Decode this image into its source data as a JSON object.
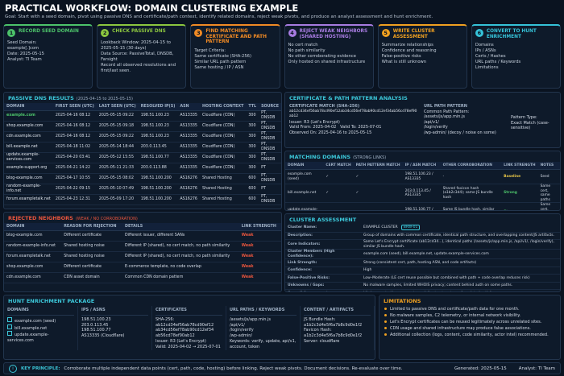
{
  "header": {
    "title": "PRACTICAL WORKFLOW: DOMAIN CLUSTERING EXAMPLE",
    "goal": "Goal: Start with a seed domain, pivot using passive DNS and certificate/path context, identify related domains, reject weak pivots, and produce an analyst assessment and hunt enrichment."
  },
  "steps": [
    {
      "number": "1",
      "title": "RECORD SEED DOMAIN",
      "color": "#4cc26a",
      "lines": [
        "Seed Domain:",
        "example[.]com",
        "Date: 2025-05-15",
        "Analyst: TI Team"
      ]
    },
    {
      "number": "2",
      "title": "CHECK PASSIVE DNS",
      "color": "#8cc63f",
      "lines": [
        "Lookback Window: 2025-04-15 to 2025-05-15 (30 days)",
        "Data Source: PassiveTotal, DNSDB, Farsight",
        "Record all observed resolutions and first/last seen."
      ]
    },
    {
      "number": "3",
      "title": "FIND MATCHING CERTIFICATE AND PATH PATTERN",
      "color": "#f08a24",
      "lines": [
        "Target Criteria:",
        "Same certificate (SHA-256)",
        "Similar URL path pattern",
        "Same hosting / IP / ASN"
      ]
    },
    {
      "number": "4",
      "title": "REJECT WEAK NEIGHBORS (SHARED HOSTING)",
      "color": "#a77be0",
      "lines": [
        "No cert match",
        "No path similarity",
        "No other corroborating evidence",
        "Only hosted on shared infrastructure"
      ]
    },
    {
      "number": "5",
      "title": "WRITE CLUSTER ASSESSMENT",
      "color": "#f0a020",
      "lines": [
        "Summarize relationships",
        "Confidence and reasoning",
        "False-positive risks",
        "What is still unknown"
      ]
    },
    {
      "number": "6",
      "title": "CONVERT TO HUNT ENRICHMENT",
      "color": "#35c2d8",
      "lines": [
        "Domains",
        "IPs / ASNs",
        "Certs / Hashes",
        "URL paths / Keywords",
        "Limitations"
      ]
    }
  ],
  "passive_dns": {
    "title": "PASSIVE DNS RESULTS",
    "subtitle": "(2025-04-15 to 2025-05-15)",
    "columns": [
      "DOMAIN",
      "FIRST SEEN (UTC)",
      "LAST SEEN (UTC)",
      "RESOLVED IP(S)",
      "ASN",
      "HOSTING CONTEXT",
      "TTL",
      "SOURCE"
    ],
    "rows": [
      [
        "example.com",
        "2025-04-16 08:12",
        "2025-05-15 09:22",
        "198.51.100.23",
        "AS13335",
        "Cloudflare (CDN)",
        "300",
        "PT, DNSDB"
      ],
      [
        "shop.example.com",
        "2025-04-16 08:12",
        "2025-05-15 09:18",
        "198.51.100.23",
        "AS13335",
        "Cloudflare (CDN)",
        "300",
        "PT, DNSDB"
      ],
      [
        "cdn.example.com",
        "2025-04-16 08:12",
        "2025-05-15 09:22",
        "198.51.100.23",
        "AS13335",
        "Cloudflare (CDN)",
        "300",
        "PT, DNSDB"
      ],
      [
        "bill.example.net",
        "2025-04-18 11:02",
        "2025-05-14 18:44",
        "203.0.113.45",
        "AS13335",
        "Cloudflare (CDN)",
        "300",
        "PT, DNSDB"
      ],
      [
        "update.example-services.com",
        "2025-04-20 03:41",
        "2025-05-12 15:55",
        "198.51.100.77",
        "AS13335",
        "Cloudflare (CDN)",
        "300",
        "PT, DNSDB"
      ],
      [
        "example-support.org",
        "2025-04-21 14:22",
        "2025-05-11 21:33",
        "203.0.113.88",
        "AS13335",
        "Cloudflare (CDN)",
        "300",
        "PT"
      ],
      [
        "blog-example.com",
        "2025-04-17 10:55",
        "2025-05-15 08:02",
        "198.51.100.200",
        "AS16276",
        "Shared Hosting",
        "600",
        "PT, DNSDB"
      ],
      [
        "random-example-info.net",
        "2025-04-22 09:15",
        "2025-05-10 07:49",
        "198.51.100.200",
        "AS16276",
        "Shared Hosting",
        "600",
        "PT"
      ],
      [
        "forum.exampletalk.net",
        "2025-04-23 12:31",
        "2025-05-09 17:20",
        "198.51.100.200",
        "AS16276",
        "Shared Hosting",
        "600",
        "PT, DNSDB"
      ]
    ]
  },
  "cert": {
    "title": "CERTIFICATE & PATH PATTERN ANALYSIS",
    "cert_label": "CERTIFICATE MATCH (SHA-256)",
    "hash": "ab12cd34ef56ab78cd90ef12ab34cd56ef78ab90cd12ef34ab56cd78ef90ab12",
    "issuer": "Issuer: R3 (Let's Encrypt)",
    "valid_from": "Valid From: 2025-04-02",
    "valid_to": "Valid To: 2025-07-01",
    "observed": "Observed On: 2025-04-16 to 2025-05-15",
    "path_label": "URL PATH PATTERN",
    "path_header": "Common Path Pattern:",
    "paths": [
      "/assets/js/app.min.js",
      "/api/v1/",
      "/login/verify",
      "/wp-admin/ (decoy / noise on some)"
    ],
    "pattern_type_label": "Pattern Type:",
    "pattern_type": "Exact Match (case-sensitive)"
  },
  "matching": {
    "title": "MATCHING DOMAINS",
    "subtitle": "(STRONG LINKS)",
    "columns": [
      "DOMAIN",
      "CERT MATCH",
      "PATH PATTERN MATCH",
      "IP / ASN MATCH",
      "OTHER CORROBORATION",
      "LINK STRENGTH",
      "NOTES"
    ],
    "rows": [
      [
        "example.com (seed)",
        "✓",
        "✓",
        "198.51.100.23 / AS13335",
        "-",
        "Baseline",
        "Seed"
      ],
      [
        "bill.example.net",
        "✓",
        "✓",
        "203.0.113.45 / AS13335",
        "Shared favicon hash (a1b2c3d4); same JS bundle hash",
        "Strong",
        "Same cert, same paths"
      ],
      [
        "update.example-services.com",
        "✓",
        "✓",
        "198.51.100.77 / AS13335",
        "Same JS bundle hash, similar config endpoint",
        "Strong",
        "Same cert, same paths"
      ]
    ],
    "strength_colors": [
      "#e8c547",
      "#4cc26a",
      "#4cc26a"
    ]
  },
  "rejected": {
    "title": "REJECTED NEIGHBORS",
    "subtitle": "(WEAK / NO CORROBORATION)",
    "columns": [
      "DOMAIN",
      "REASON FOR REJECTION",
      "DETAILS",
      "LINK STRENGTH"
    ],
    "rows": [
      [
        "blog-example.com",
        "Different certificate",
        "Different issuer, different SANs",
        "Weak"
      ],
      [
        "random-example-info.net",
        "Shared hosting noise",
        "Different IP (shared), no cert match, no path similarity",
        "Weak"
      ],
      [
        "forum.exampletalk.net",
        "Shared hosting noise",
        "Different IP (shared), no cert match, no path similarity",
        "Weak"
      ],
      [
        "shop.example.com",
        "Different certificate",
        "E-commerce template, no code overlap",
        "Weak"
      ],
      [
        "cdn.example.com",
        "CDN asset domain",
        "Common CDN domain pattern",
        "Weak"
      ]
    ],
    "strength_color": "#e8553d"
  },
  "assessment": {
    "title": "CLUSTER ASSESSMENT",
    "rows": [
      [
        "Cluster Name:",
        "EXAMPLE CLUSTER",
        "BRW-01"
      ],
      [
        "Description:",
        "Group of domains with common certificate, identical path structure, and overlapping content/JS artifacts."
      ],
      [
        "Core Indicators:",
        "Same Let's Encrypt certificate (ab12cd34...), identical paths (/assets/js/app.min.js, /api/v1/, /login/verify), similar JS bundle hash."
      ],
      [
        "Cluster Members (High Confidence):",
        "example.com (seed), bill.example.net, update.example-services.com"
      ],
      [
        "Link Strength:",
        "Strong (consistent cert, path, hosting ASN, and code artifacts)"
      ],
      [
        "Confidence:",
        "High"
      ],
      [
        "False-Positive Risks:",
        "Low–Moderate (LE cert reuse possible but combined with path + code overlap reduces risk)"
      ],
      [
        "Unknowns / Gaps:",
        "No malware samples, limited WHOIS privacy; content behind auth on some paths."
      ],
      [
        "Overall Assessment:",
        "Likely operated by same actor or infrastructure team for related activity."
      ]
    ]
  },
  "hunt": {
    "title": "HUNT ENRICHMENT PACKAGE",
    "columns": [
      {
        "header": "DOMAINS",
        "items": [
          "example.com (seed)",
          "bill.example.net",
          "update.example-services.com"
        ]
      },
      {
        "header": "IPS / ASNS",
        "items": [
          "198.51.100.23",
          "203.0.113.45",
          "198.51.100.77",
          "AS13335 (Cloudflare)"
        ]
      },
      {
        "header": "CERTIFICATES",
        "items": [
          "SHA-256:",
          "ab12cd34ef56ab78cd90ef12",
          "ab34cd56ef78ab90cd12ef34",
          "ab56cd78ef90ab12",
          "Issuer: R3 (Let's Encrypt)",
          "Valid: 2025-04-02 → 2025-07-01"
        ]
      },
      {
        "header": "URL PATHS / KEYWORDS",
        "items": [
          "/assets/js/app.min.js",
          "/api/v1/",
          "/login/verify",
          "/wp-admin/",
          "Keywords: verify, update, api/v1, account, token"
        ]
      },
      {
        "header": "CONTENT / ARTIFACTS",
        "items": [
          "JS Bundle Hash:",
          "a1b2c3d4e5f6a7b8c9d0e1f2",
          "Favicon Hash:",
          "a1b2c3d4e5f6a7b8c9d0e1f2",
          "Server: cloudflare"
        ]
      }
    ]
  },
  "limitations": {
    "title": "LIMITATIONS",
    "items": [
      "Limited to passive DNS and certificate/path data for one month.",
      "No malware samples, C2 telemetry, or internal network visibility.",
      "Let's Encrypt certificates can be reused legitimately across unrelated sites.",
      "CDN usage and shared infrastructure may produce false associations.",
      "Additional collection (logs, content, code similarity, actor intel) recommended."
    ]
  },
  "footer": {
    "label": "KEY PRINCIPLE:",
    "text": "Corroborate multiple independent data points (cert, path, code, hosting) before linking. Reject weak pivots. Document decisions. Re-evaluate over time.",
    "generated": "Generated: 2025-05-15",
    "analyst": "Analyst: TI Team"
  }
}
